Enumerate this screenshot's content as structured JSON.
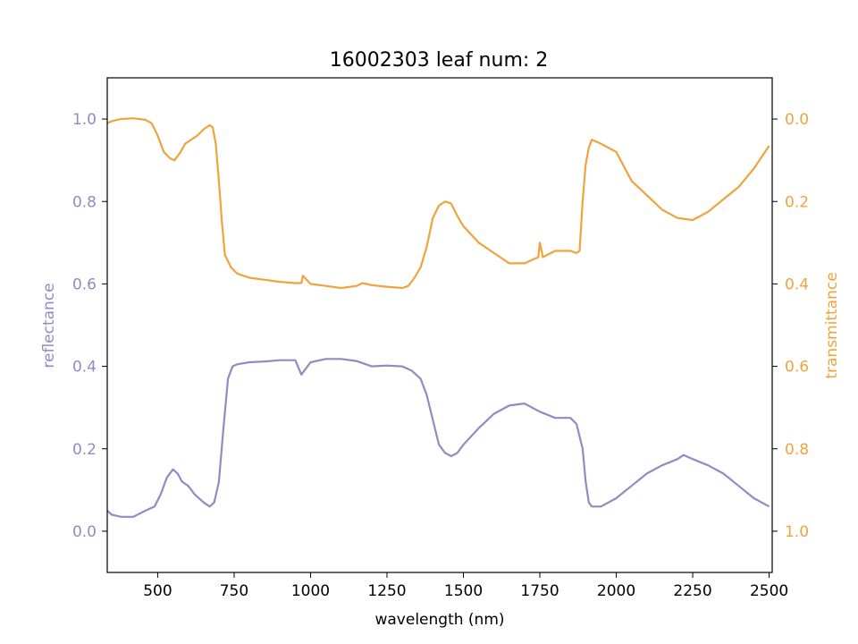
{
  "chart_data": {
    "type": "line",
    "title": "16002303 leaf num: 2",
    "xlabel": "wavelength (nm)",
    "xlim": [
      335,
      2510
    ],
    "xticks": [
      500,
      750,
      1000,
      1250,
      1500,
      1750,
      2000,
      2250,
      2500
    ],
    "grid": false,
    "axes": {
      "left": {
        "label": "reflectance",
        "color": "#8f8bc4",
        "lim": [
          -0.1,
          1.1
        ],
        "inverted": false,
        "ticks": [
          0.0,
          0.2,
          0.4,
          0.6,
          0.8,
          1.0
        ]
      },
      "right": {
        "label": "transmittance",
        "color": "#f0a33c",
        "lim": [
          -0.1,
          1.1
        ],
        "inverted": true,
        "ticks": [
          0.0,
          0.2,
          0.4,
          0.6,
          0.8,
          1.0
        ]
      }
    },
    "series": [
      {
        "axis": "left",
        "color": "#8f8bc4",
        "x": [
          335,
          350,
          380,
          420,
          460,
          490,
          510,
          530,
          550,
          565,
          580,
          600,
          620,
          650,
          670,
          685,
          700,
          715,
          730,
          745,
          760,
          800,
          850,
          900,
          950,
          970,
          1000,
          1050,
          1100,
          1150,
          1200,
          1250,
          1300,
          1330,
          1360,
          1380,
          1400,
          1420,
          1440,
          1460,
          1480,
          1500,
          1550,
          1600,
          1650,
          1700,
          1750,
          1800,
          1850,
          1870,
          1890,
          1900,
          1910,
          1920,
          1950,
          2000,
          2050,
          2100,
          2150,
          2200,
          2220,
          2250,
          2300,
          2350,
          2400,
          2450,
          2500
        ],
        "y": [
          0.05,
          0.04,
          0.035,
          0.035,
          0.05,
          0.06,
          0.09,
          0.13,
          0.15,
          0.14,
          0.12,
          0.11,
          0.09,
          0.07,
          0.06,
          0.07,
          0.12,
          0.25,
          0.37,
          0.4,
          0.405,
          0.41,
          0.412,
          0.415,
          0.415,
          0.38,
          0.41,
          0.418,
          0.418,
          0.413,
          0.4,
          0.402,
          0.4,
          0.39,
          0.37,
          0.33,
          0.27,
          0.21,
          0.19,
          0.182,
          0.19,
          0.21,
          0.25,
          0.285,
          0.305,
          0.31,
          0.29,
          0.275,
          0.275,
          0.26,
          0.2,
          0.12,
          0.07,
          0.06,
          0.06,
          0.08,
          0.11,
          0.14,
          0.16,
          0.175,
          0.185,
          0.175,
          0.16,
          0.14,
          0.11,
          0.08,
          0.06
        ]
      },
      {
        "axis": "right",
        "color": "#f0a33c",
        "x": [
          335,
          350,
          380,
          420,
          460,
          480,
          500,
          520,
          540,
          555,
          575,
          590,
          610,
          630,
          650,
          670,
          680,
          690,
          700,
          710,
          720,
          740,
          760,
          800,
          850,
          900,
          950,
          970,
          975,
          1000,
          1050,
          1100,
          1150,
          1170,
          1200,
          1250,
          1300,
          1320,
          1340,
          1360,
          1380,
          1400,
          1420,
          1440,
          1460,
          1480,
          1500,
          1550,
          1600,
          1650,
          1700,
          1745,
          1750,
          1760,
          1800,
          1850,
          1870,
          1880,
          1890,
          1900,
          1910,
          1920,
          1950,
          2000,
          2050,
          2100,
          2150,
          2200,
          2250,
          2300,
          2350,
          2400,
          2450,
          2500
        ],
        "y": [
          0.01,
          0.005,
          0.0,
          -0.002,
          0.002,
          0.01,
          0.04,
          0.08,
          0.095,
          0.1,
          0.08,
          0.06,
          0.05,
          0.04,
          0.025,
          0.015,
          0.02,
          0.06,
          0.15,
          0.25,
          0.33,
          0.36,
          0.375,
          0.385,
          0.39,
          0.395,
          0.398,
          0.398,
          0.38,
          0.4,
          0.405,
          0.41,
          0.405,
          0.398,
          0.403,
          0.407,
          0.41,
          0.405,
          0.385,
          0.36,
          0.31,
          0.24,
          0.21,
          0.2,
          0.205,
          0.235,
          0.26,
          0.3,
          0.325,
          0.35,
          0.35,
          0.335,
          0.3,
          0.335,
          0.32,
          0.32,
          0.325,
          0.32,
          0.2,
          0.11,
          0.07,
          0.05,
          0.06,
          0.08,
          0.15,
          0.185,
          0.22,
          0.24,
          0.245,
          0.225,
          0.195,
          0.165,
          0.12,
          0.065
        ]
      }
    ]
  }
}
